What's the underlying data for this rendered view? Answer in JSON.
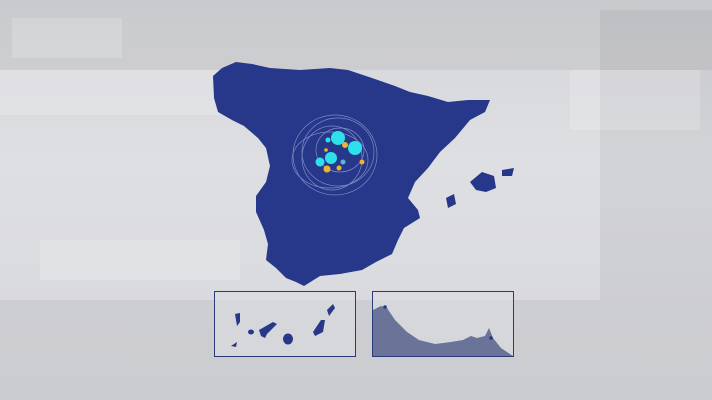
{
  "map": {
    "region": "Spain",
    "colors": {
      "land": "#27378a",
      "land_shade": "#1f2d77",
      "bubble_primary": "#2fe0ea",
      "bubble_secondary": "#f0b42a",
      "orbit_lines": "#9aa6d8",
      "inset_border": "#2a3a7a",
      "inset_ceuta_melilla_fill": "#6a7398"
    },
    "insets": [
      "canary-islands",
      "ceuta-melilla"
    ]
  }
}
